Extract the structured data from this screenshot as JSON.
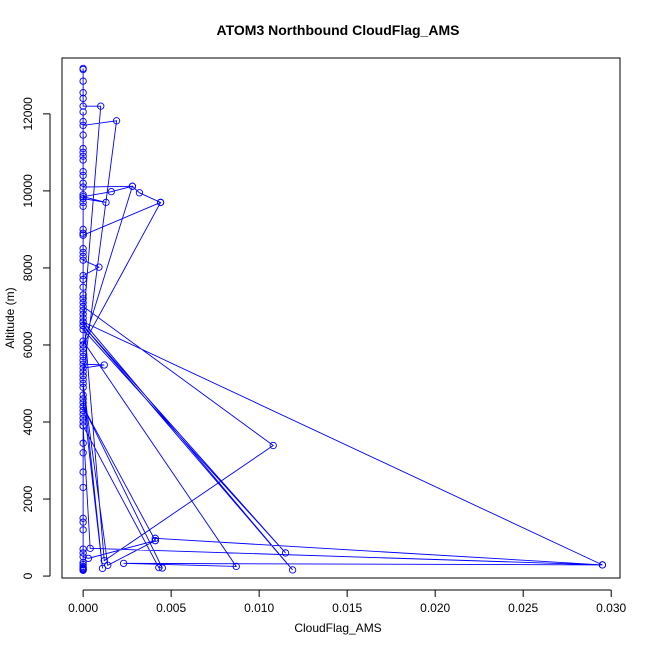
{
  "chart_data": {
    "type": "line",
    "title": "ATOM3 Northbound CloudFlag_AMS",
    "xlabel": "CloudFlag_AMS",
    "ylabel": "Altitude (m)",
    "xlim": [
      -0.0012,
      0.0305
    ],
    "ylim": [
      -50,
      13450
    ],
    "x_ticks": [
      0.0,
      0.005,
      0.01,
      0.015,
      0.02,
      0.025,
      0.03
    ],
    "x_tick_labels": [
      "0.000",
      "0.005",
      "0.010",
      "0.015",
      "0.020",
      "0.025",
      "0.030"
    ],
    "y_ticks": [
      0,
      2000,
      4000,
      6000,
      8000,
      10000,
      12000
    ],
    "y_tick_labels": [
      "0",
      "2000",
      "4000",
      "6000",
      "8000",
      "10000",
      "12000"
    ],
    "grid": false,
    "legend": "none",
    "series_color": "#0000ff",
    "series": [
      {
        "marker": "open-circle",
        "points": [
          [
            0,
            13180
          ],
          [
            0,
            13150
          ],
          [
            0,
            12850
          ],
          [
            0,
            12550
          ],
          [
            0,
            12400
          ],
          [
            0,
            12200
          ],
          [
            0.001,
            12200
          ],
          [
            0,
            6500
          ],
          [
            0,
            12050
          ],
          [
            0,
            11800
          ],
          [
            0,
            11700
          ],
          [
            0.0019,
            11820
          ],
          [
            0,
            5200
          ],
          [
            0,
            11450
          ],
          [
            0,
            11100
          ],
          [
            0,
            11000
          ],
          [
            0,
            10900
          ],
          [
            0,
            10800
          ],
          [
            0,
            10500
          ],
          [
            0,
            10400
          ],
          [
            0,
            10200
          ],
          [
            0,
            10100
          ],
          [
            0.0028,
            10120
          ],
          [
            0,
            6000
          ],
          [
            0.0044,
            9700
          ],
          [
            0.0032,
            9950
          ],
          [
            0.0028,
            10120
          ],
          [
            0.0016,
            9980
          ],
          [
            0,
            9850
          ],
          [
            0.0013,
            9700
          ],
          [
            0,
            9800
          ],
          [
            0,
            9900
          ],
          [
            0,
            9700
          ],
          [
            0,
            9600
          ],
          [
            0,
            9000
          ],
          [
            0,
            8900
          ],
          [
            0,
            8850
          ],
          [
            0.0044,
            9700
          ],
          [
            0,
            8850
          ],
          [
            0,
            8500
          ],
          [
            0,
            8400
          ],
          [
            0,
            8300
          ],
          [
            0,
            8200
          ],
          [
            0.0009,
            8020
          ],
          [
            0,
            7800
          ],
          [
            0,
            7700
          ],
          [
            0,
            7500
          ],
          [
            0,
            7300
          ],
          [
            0,
            7200
          ],
          [
            0,
            7100
          ],
          [
            0,
            7000
          ],
          [
            0.0108,
            3390
          ],
          [
            0.0012,
            400
          ],
          [
            0,
            6900
          ],
          [
            0,
            6800
          ],
          [
            0,
            6700
          ],
          [
            0,
            6600
          ],
          [
            0,
            6500
          ],
          [
            0,
            6400
          ],
          [
            0.0115,
            600
          ],
          [
            0,
            6500
          ],
          [
            0.0119,
            160
          ],
          [
            0,
            6600
          ],
          [
            0.0295,
            290
          ],
          [
            0.0023,
            330
          ],
          [
            0.0087,
            250
          ],
          [
            0,
            6100
          ],
          [
            0,
            6000
          ],
          [
            0,
            5900
          ],
          [
            0,
            5800
          ],
          [
            0,
            5700
          ],
          [
            0,
            5600
          ],
          [
            0,
            5500
          ],
          [
            0.0012,
            5480
          ],
          [
            0,
            5400
          ],
          [
            0,
            5300
          ],
          [
            0,
            5200
          ],
          [
            0,
            5100
          ],
          [
            0,
            4900
          ],
          [
            0,
            4700
          ],
          [
            0,
            4500
          ],
          [
            0,
            4400
          ],
          [
            0,
            4300
          ],
          [
            0,
            4200
          ],
          [
            0,
            4100
          ],
          [
            0,
            4000
          ],
          [
            0,
            3900
          ],
          [
            0.0043,
            220
          ],
          [
            0.0045,
            210
          ],
          [
            0,
            4400
          ],
          [
            0.0041,
            920
          ],
          [
            0.0041,
            980
          ],
          [
            0.0295,
            290
          ],
          [
            0.0004,
            720
          ],
          [
            0,
            3900
          ],
          [
            0,
            3450
          ],
          [
            0,
            3200
          ],
          [
            0,
            2700
          ],
          [
            0,
            2300
          ],
          [
            0,
            1500
          ],
          [
            0,
            1400
          ],
          [
            0,
            1200
          ],
          [
            0,
            700
          ],
          [
            0,
            600
          ],
          [
            0,
            500
          ],
          [
            0.0003,
            460
          ],
          [
            0.0041,
            920
          ],
          [
            0.0014,
            280
          ],
          [
            0,
            5000
          ],
          [
            0.0011,
            200
          ],
          [
            0,
            4600
          ],
          [
            0,
            350
          ],
          [
            0,
            300
          ],
          [
            0,
            250
          ],
          [
            0,
            220
          ],
          [
            0,
            200
          ],
          [
            0,
            180
          ],
          [
            0,
            160
          ],
          [
            0,
            150
          ]
        ]
      }
    ]
  }
}
